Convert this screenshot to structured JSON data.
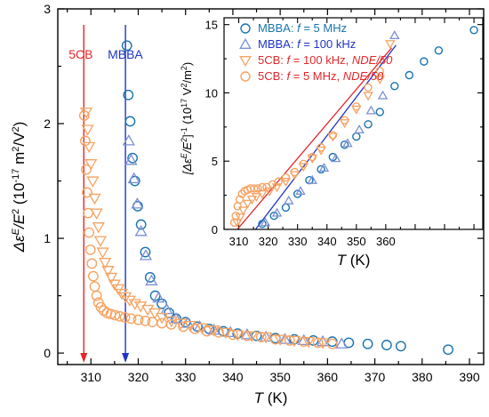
{
  "chart_data": [
    {
      "type": "scatter",
      "xlabel": "T (K)",
      "ylabel": "ΔεE/E2 (10-17 m2/V2)",
      "xlim": [
        303,
        393
      ],
      "ylim": [
        -0.1,
        3
      ],
      "xticks": [
        310,
        320,
        330,
        340,
        350,
        360,
        370,
        380,
        390
      ],
      "yticks": [
        0,
        1,
        2,
        3
      ],
      "annotations": [
        {
          "text": "5CB",
          "x": 308.5,
          "color": "#e3272b"
        },
        {
          "text": "MBBA",
          "x": 317.3,
          "color": "#1f35c4"
        }
      ],
      "series": [
        {
          "name": "MBBA: f = 5 MHz",
          "marker": "circle",
          "color": "#1a74ad",
          "x": [
            317.6,
            317.9,
            318.3,
            318.8,
            319.3,
            319.9,
            320.6,
            321.5,
            322.5,
            323.6,
            325,
            326.5,
            328,
            330,
            332.5,
            335,
            338,
            341,
            345,
            349,
            353,
            357,
            361,
            364.5,
            368.5,
            372.5,
            375.5,
            385.5
          ],
          "y": [
            2.68,
            2.25,
            2.02,
            1.7,
            1.5,
            1.28,
            1.12,
            0.88,
            0.66,
            0.5,
            0.43,
            0.35,
            0.3,
            0.27,
            0.23,
            0.21,
            0.19,
            0.17,
            0.15,
            0.13,
            0.12,
            0.11,
            0.1,
            0.09,
            0.08,
            0.07,
            0.06,
            0.03
          ]
        },
        {
          "name": "MBBA: f = 100 kHz",
          "marker": "triangle-up",
          "color": "#7b8fd6",
          "x": [
            318,
            318.5,
            319.1,
            319.8,
            320.6,
            321.6,
            322.8,
            324.3,
            326,
            328,
            330.5,
            333,
            336,
            339.5,
            343,
            347,
            351,
            355,
            359,
            363
          ],
          "y": [
            1.85,
            1.68,
            1.52,
            1.3,
            1.06,
            0.85,
            0.63,
            0.48,
            0.38,
            0.3,
            0.26,
            0.23,
            0.2,
            0.18,
            0.16,
            0.14,
            0.12,
            0.11,
            0.1,
            0.08
          ]
        },
        {
          "name": "5CB: f = 100 kHz, NDE/50",
          "marker": "triangle-down",
          "color": "#f6a362",
          "x": [
            309,
            309.3,
            309.6,
            310,
            310.4,
            310.8,
            311.2,
            311.6,
            312,
            312.5,
            313,
            313.6,
            314.3,
            315,
            315.8,
            316.5,
            317.3,
            318.2,
            319.3,
            320.5,
            322,
            323.5,
            325,
            327,
            329,
            331,
            333.5,
            336,
            338.5,
            341,
            344,
            347,
            350,
            353,
            356,
            359
          ],
          "y": [
            2.1,
            1.95,
            1.8,
            1.65,
            1.5,
            1.35,
            1.22,
            1.1,
            0.98,
            0.88,
            0.79,
            0.72,
            0.66,
            0.6,
            0.56,
            0.52,
            0.49,
            0.46,
            0.43,
            0.41,
            0.38,
            0.35,
            0.31,
            0.28,
            0.26,
            0.24,
            0.22,
            0.2,
            0.18,
            0.16,
            0.15,
            0.14,
            0.12,
            0.11,
            0.1,
            0.09
          ]
        },
        {
          "name": "5CB: f = 5 MHz, NDE/50",
          "marker": "circle",
          "color": "#f6a362",
          "x": [
            308.6,
            308.8,
            309,
            309.2,
            309.4,
            309.6,
            309.9,
            310.2,
            310.5,
            310.8,
            311.2,
            311.6,
            312.1,
            312.7,
            313.4,
            314.2,
            315.1,
            316.1,
            317.2,
            318.5,
            320,
            321.5,
            323,
            325,
            327,
            329.5,
            332,
            334.5,
            337,
            340,
            343,
            346,
            349,
            352,
            355,
            358,
            361
          ],
          "y": [
            2.07,
            1.85,
            1.6,
            1.4,
            1.22,
            1.05,
            0.9,
            0.78,
            0.67,
            0.58,
            0.5,
            0.44,
            0.4,
            0.37,
            0.35,
            0.34,
            0.33,
            0.32,
            0.31,
            0.3,
            0.29,
            0.28,
            0.27,
            0.26,
            0.25,
            0.23,
            0.21,
            0.19,
            0.18,
            0.16,
            0.15,
            0.14,
            0.12,
            0.11,
            0.1,
            0.09,
            0.08
          ]
        }
      ]
    },
    {
      "type": "scatter",
      "inset": true,
      "xlabel": "T (K)",
      "ylabel": "[ΔεE/E2]-1 (1017 V2/m2)",
      "xlim": [
        305,
        393
      ],
      "ylim": [
        0,
        15.5
      ],
      "xticks": [
        310,
        320,
        330,
        340,
        350,
        360
      ],
      "yticks": [
        0,
        5,
        10,
        15
      ],
      "legend_position": "top-left",
      "series": [
        {
          "name": "MBBA: f = 5 MHz",
          "marker": "circle",
          "color": "#1a74ad",
          "x": [
            318,
            322,
            326,
            330,
            334,
            338,
            342,
            346,
            350,
            354,
            358,
            363,
            368,
            373,
            378,
            390
          ],
          "y": [
            0.4,
            1.0,
            1.6,
            2.6,
            3.6,
            4.4,
            5.3,
            6.2,
            6.8,
            7.7,
            8.6,
            10.5,
            11.3,
            12.3,
            13.1,
            14.6
          ]
        },
        {
          "name": "MBBA: f = 100 kHz",
          "marker": "triangle-up",
          "color": "#7b8fd6",
          "x": [
            319,
            323,
            327,
            331,
            335,
            339,
            343,
            347,
            351,
            355,
            359,
            363
          ],
          "y": [
            0.5,
            1.2,
            2.1,
            2.8,
            3.6,
            4.5,
            5.2,
            6.3,
            7.3,
            8.7,
            9.8,
            14.2
          ]
        },
        {
          "name": "5CB: f = 100 kHz, NDE/50",
          "marker": "triangle-down",
          "color": "#f6a362",
          "x": [
            309.5,
            310.5,
            311.5,
            313,
            314.5,
            316,
            318,
            320.5,
            323,
            326,
            329,
            332,
            335,
            338,
            342,
            346,
            350,
            354,
            358,
            361.5
          ],
          "y": [
            0.5,
            0.9,
            1.4,
            1.9,
            2.2,
            2.4,
            2.6,
            2.8,
            3.1,
            3.5,
            4.0,
            4.6,
            5.2,
            5.8,
            6.8,
            7.8,
            8.8,
            9.8,
            11.0,
            13.6
          ]
        },
        {
          "name": "5CB: f = 5 MHz, NDE/50",
          "marker": "circle",
          "color": "#f6a362",
          "x": [
            308.5,
            309,
            309.6,
            310.3,
            311.1,
            312,
            313,
            314,
            315.2,
            316.5,
            318,
            319.5,
            321.5,
            323.5,
            326,
            329,
            332,
            335,
            338,
            342,
            346,
            350,
            354,
            358
          ],
          "y": [
            0.5,
            1.0,
            1.7,
            2.2,
            2.6,
            2.8,
            2.9,
            3.0,
            3.0,
            3.0,
            3.1,
            3.1,
            3.3,
            3.5,
            3.8,
            4.2,
            4.8,
            5.3,
            6.0,
            6.9,
            8.0,
            9.0,
            10.4,
            11.6
          ]
        }
      ],
      "fit_lines": [
        {
          "series": "MBBA",
          "color": "#1f35c4",
          "x": [
            315.7,
            363.5
          ],
          "y": [
            0,
            13.5
          ]
        },
        {
          "series": "5CB",
          "color": "#e3272b",
          "x": [
            309.5,
            362
          ],
          "y": [
            0,
            13.3
          ]
        }
      ]
    }
  ]
}
